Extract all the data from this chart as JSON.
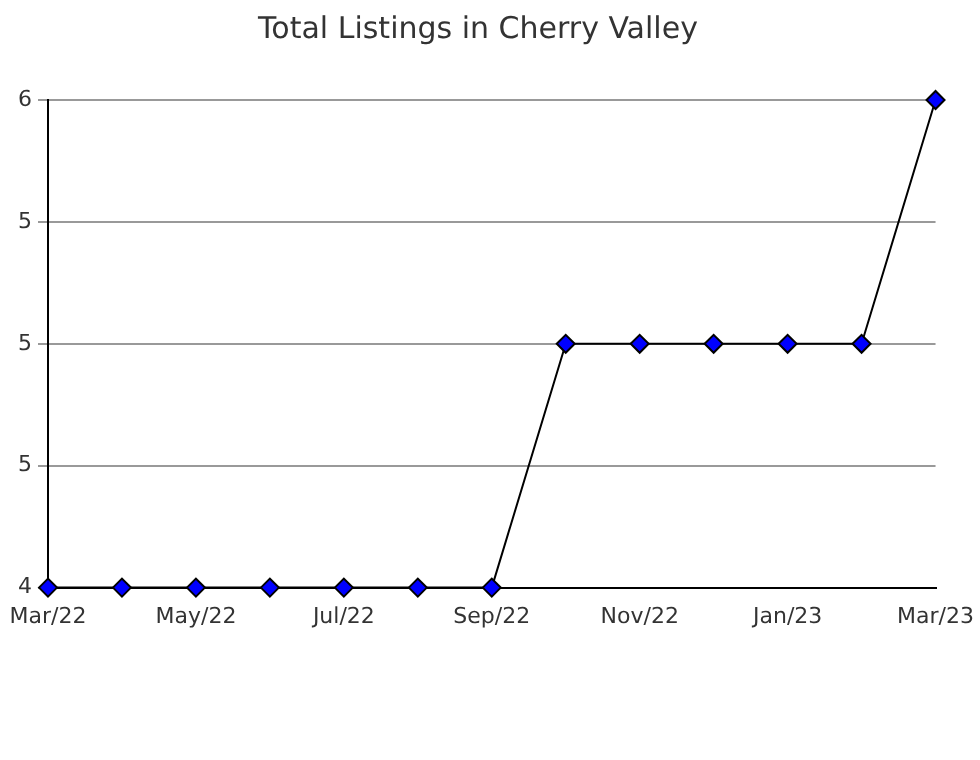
{
  "chart_data": {
    "type": "line",
    "title": "Total Listings in Cherry Valley",
    "categories": [
      "Mar/22",
      null,
      "May/22",
      null,
      "Jul/22",
      null,
      "Sep/22",
      null,
      "Nov/22",
      null,
      "Jan/23",
      null,
      "Mar/23"
    ],
    "series": [
      {
        "color": "#0000ff",
        "values": [
          4,
          4,
          4,
          4,
          4,
          4,
          4,
          5,
          5,
          5,
          5,
          5,
          6
        ]
      }
    ],
    "ylim": [
      4,
      6
    ],
    "yticks": [
      4,
      {
        "value": 4.5,
        "label": "5"
      },
      5,
      {
        "value": 5.5,
        "label": "5"
      },
      6
    ],
    "grid": "y",
    "legend": false,
    "marker": "diamond",
    "line_style": "solid"
  }
}
